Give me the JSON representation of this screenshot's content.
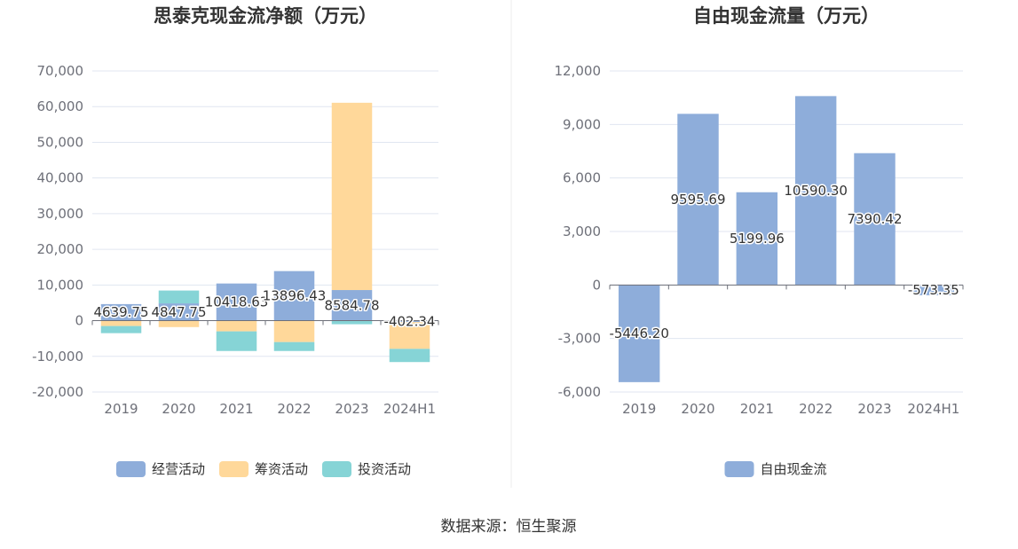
{
  "source": "数据来源：恒生聚源",
  "chart_data": [
    {
      "type": "bar",
      "stacked": true,
      "title": "思泰克现金流净额（万元）",
      "categories": [
        "2019",
        "2020",
        "2021",
        "2022",
        "2023",
        "2024H1"
      ],
      "ylim": [
        -20000,
        70000
      ],
      "yticks": [
        70000,
        60000,
        50000,
        40000,
        30000,
        20000,
        10000,
        0,
        -10000,
        -20000
      ],
      "ytick_labels": [
        "70,000",
        "60,000",
        "50,000",
        "40,000",
        "30,000",
        "20,000",
        "10,000",
        "0",
        "-10,000",
        "-20,000"
      ],
      "grid": true,
      "legend": "bottom",
      "series": [
        {
          "name": "经营活动",
          "color": "#8eadda",
          "values": [
            4639.75,
            4847.75,
            10418.63,
            13896.43,
            8584.78,
            -402.34
          ]
        },
        {
          "name": "筹资活动",
          "color": "#ffd89a",
          "values": [
            -1500,
            -1800,
            -3000,
            -6000,
            52500,
            -7500
          ]
        },
        {
          "name": "投资活动",
          "color": "#86d4d6",
          "values": [
            -2000,
            3600,
            -5500,
            -2500,
            -1000,
            -3700
          ]
        }
      ],
      "data_labels": [
        "4639.75",
        "4847.75",
        "10418.63",
        "13896.43",
        "8584.78",
        "-402.34"
      ]
    },
    {
      "type": "bar",
      "title": "自由现金流量（万元）",
      "categories": [
        "2019",
        "2020",
        "2021",
        "2022",
        "2023",
        "2024H1"
      ],
      "ylim": [
        -6000,
        12000
      ],
      "yticks": [
        12000,
        9000,
        6000,
        3000,
        0,
        -3000,
        -6000
      ],
      "ytick_labels": [
        "12,000",
        "9,000",
        "6,000",
        "3,000",
        "0",
        "-3,000",
        "-6,000"
      ],
      "grid": true,
      "legend": "bottom",
      "series": [
        {
          "name": "自由现金流",
          "color": "#8eadda",
          "values": [
            -5446.2,
            9595.69,
            5199.96,
            10590.3,
            7390.42,
            -573.35
          ]
        }
      ],
      "data_labels": [
        "-5446.20",
        "9595.69",
        "5199.96",
        "10590.30",
        "7390.42",
        "-573.35"
      ]
    }
  ]
}
